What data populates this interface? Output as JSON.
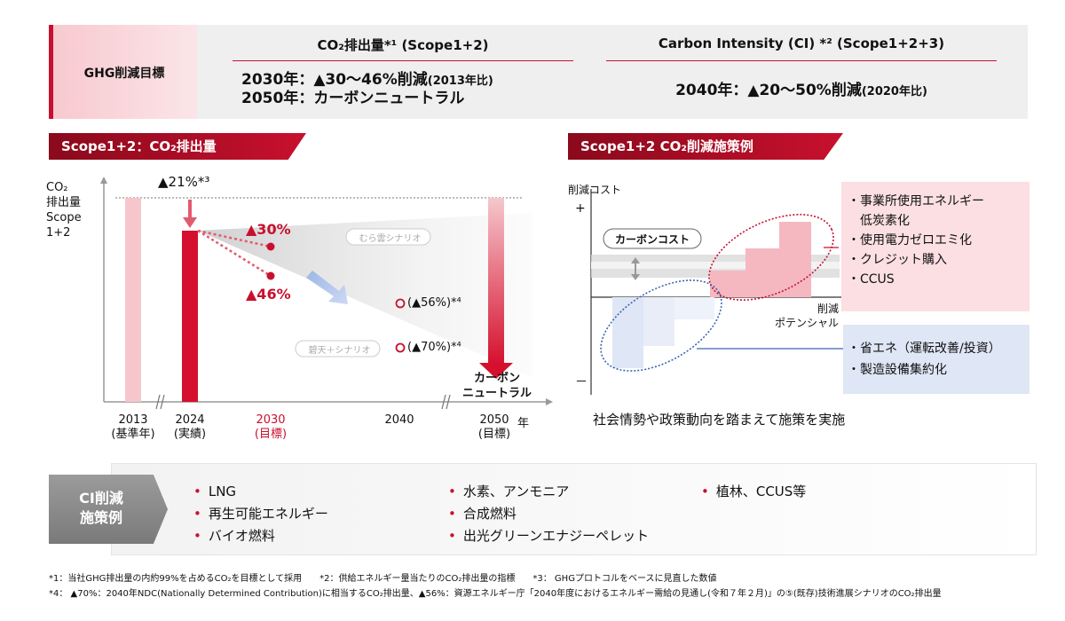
{
  "goal": {
    "label": "GHG削減目標",
    "co2_header": "CO₂排出量*¹ (Scope1+2)",
    "co2_line1_main": "2030年：▲30～46%削減",
    "co2_line1_note": "(2013年比)",
    "co2_line2": "2050年：カーボンニュートラル",
    "ci_header": "Carbon Intensity (CI) *² (Scope1+2+3)",
    "ci_line_main": "2040年：▲20～50%削減",
    "ci_line_note": "(2020年比)"
  },
  "left_section": {
    "banner": "Scope1+2：CO₂排出量",
    "ylabel": [
      "CO₂",
      "排出量",
      "Scope",
      "1+2"
    ],
    "annot_21": "▲21%*³",
    "annot_30": "▲30%",
    "annot_46": "▲46%",
    "scenario_upper": "むら雲シナリオ",
    "scenario_lower": "碧天＋シナリオ",
    "annot_56": "(▲56%)*⁴",
    "annot_70": "(▲70%)*⁴",
    "carbon_neutral": [
      "カーボン",
      "ニュートラル"
    ],
    "x_ticks": [
      {
        "year": "2013",
        "sub": "(基準年)"
      },
      {
        "year": "2024",
        "sub": "(実績)"
      },
      {
        "year": "2030",
        "sub": "(目標)"
      },
      {
        "year": "2040",
        "sub": ""
      },
      {
        "year": "2050",
        "sub": "(目標)"
      }
    ],
    "x_unit": "年"
  },
  "right_section": {
    "banner": "Scope1+2 CO₂削減施策例",
    "ylabel": "削減コスト",
    "plus": "+",
    "minus": "－",
    "xlabel": [
      "削減",
      "ポテンシャル"
    ],
    "carbon_cost": "カーボンコスト",
    "pink_items": [
      "事業所使用エネルギー",
      "低炭素化",
      "使用電力ゼロエミ化",
      "クレジット購入",
      "CCUS"
    ],
    "blue_items": [
      "省エネ（運転改善/投資）",
      "製造設備集約化"
    ],
    "bottom_text": "社会情勢や政策動向を踏まえて施策を実施"
  },
  "ci_measures": {
    "label": [
      "CI削減",
      "施策例"
    ],
    "col1": [
      "LNG",
      "再生可能エネルギー",
      "バイオ燃料"
    ],
    "col2": [
      "水素、アンモニア",
      "合成燃料",
      "出光グリーンエナジーペレット"
    ],
    "col3": [
      "植林、CCUS等"
    ]
  },
  "footnotes": {
    "line1": "*1：当社GHG排出量の内約99%を占めるCO₂を目標として採用　　*2：供給エネルギー量当たりのCO₂排出量の指標　　*3： GHGプロトコルをベースに見直した数値",
    "line2": "*4： ▲70%：2040年NDC(Nationally Determined Contribution)に相当するCO₂排出量、▲56%：資源エネルギー庁「2040年度におけるエネルギー需給の見通し(令和７年２月)」の⑤(既存)技術進展シナリオのCO₂排出量"
  },
  "colors": {
    "accent": "#c8102e",
    "pink": "#f7c9cf",
    "blue": "#dfe6f5",
    "gray": "#efefef"
  }
}
